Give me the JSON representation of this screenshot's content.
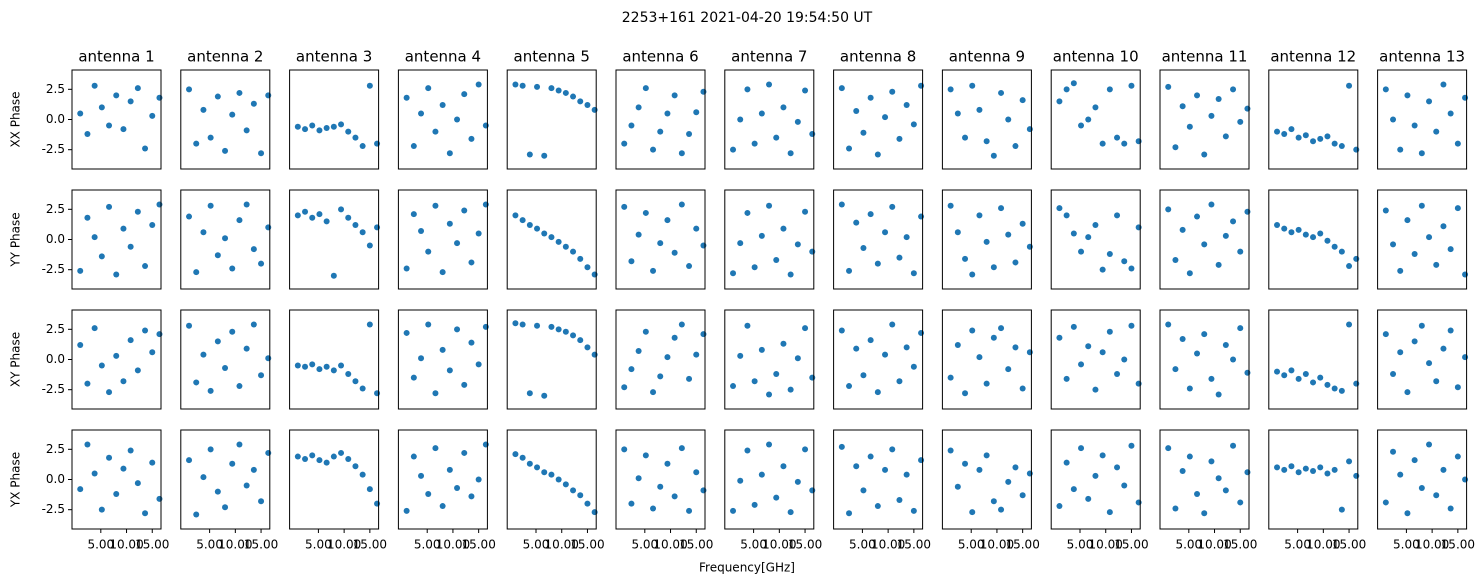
{
  "chart_data": {
    "type": "scatter",
    "title": "2253+161 2021-04-20 19:54:50 UT",
    "xlabel": "Frequency[GHz]",
    "columns": [
      "antenna 1",
      "antenna 2",
      "antenna 3",
      "antenna 4",
      "antenna 5",
      "antenna 6",
      "antenna 7",
      "antenna 8",
      "antenna 9",
      "antenna 10",
      "antenna 11",
      "antenna 12",
      "antenna 13"
    ],
    "rows": [
      "XX Phase",
      "YY Phase",
      "XY Phase",
      "YX Phase"
    ],
    "color": "#1f77b4",
    "xlim": [
      -0.6,
      16.7
    ],
    "xticks": [
      {
        "value": 5,
        "label": "5.00"
      },
      {
        "value": 10,
        "label": "10.00"
      },
      {
        "value": 15,
        "label": "15.00"
      }
    ],
    "ylim": [
      -4.1,
      4.1
    ],
    "yticks": [
      2.5,
      {
        "value": 0,
        "label": "0.0"
      },
      -2.5
    ],
    "x": [
      1.0,
      2.4,
      3.8,
      5.2,
      6.6,
      8.0,
      9.4,
      10.8,
      12.2,
      13.6,
      15.0,
      16.4
    ],
    "panels": [
      [
        [
          0.5,
          -1.2,
          2.8,
          1.0,
          -0.5,
          2.0,
          -0.8,
          1.5,
          2.6,
          -2.4,
          0.3,
          1.8
        ],
        [
          2.5,
          -2.0,
          0.8,
          -1.5,
          1.9,
          -2.6,
          0.4,
          2.2,
          -0.9,
          1.3,
          -2.8,
          2.0
        ],
        [
          -0.6,
          -0.8,
          -0.5,
          -0.9,
          -0.7,
          -0.6,
          -0.4,
          -1.0,
          -1.5,
          -2.2,
          2.8,
          -2.0
        ],
        [
          1.8,
          -2.2,
          0.5,
          2.6,
          -1.0,
          1.2,
          -2.8,
          0.0,
          2.1,
          -1.6,
          2.9,
          -0.5
        ],
        [
          2.9,
          2.8,
          -2.9,
          2.7,
          -3.0,
          2.6,
          2.4,
          2.2,
          1.9,
          1.5,
          1.2,
          0.8
        ],
        [
          -2.0,
          -0.5,
          1.0,
          2.6,
          -2.5,
          -1.0,
          0.5,
          2.0,
          -2.8,
          -1.2,
          0.6,
          2.3
        ],
        [
          -2.5,
          0.0,
          2.5,
          -2.0,
          0.5,
          2.9,
          -1.5,
          1.0,
          -2.8,
          -0.2,
          2.4,
          -1.2
        ],
        [
          2.6,
          -2.4,
          0.7,
          -1.1,
          1.8,
          -2.9,
          0.2,
          2.3,
          -1.6,
          1.2,
          -0.4,
          2.8
        ],
        [
          2.5,
          0.5,
          -1.5,
          2.8,
          0.8,
          -1.8,
          -3.0,
          2.2,
          0.0,
          -2.2,
          1.6,
          -0.8
        ],
        [
          1.5,
          2.5,
          3.0,
          -0.5,
          0.0,
          1.0,
          -2.0,
          2.5,
          -1.5,
          -2.0,
          2.8,
          -1.8
        ],
        [
          2.7,
          -2.3,
          1.1,
          -0.6,
          2.0,
          -2.9,
          0.3,
          1.7,
          -1.4,
          2.5,
          -0.2,
          0.9
        ],
        [
          -1.0,
          -1.2,
          -0.8,
          -1.5,
          -1.3,
          -1.8,
          -1.6,
          -1.4,
          -2.0,
          -2.2,
          2.8,
          -2.5
        ],
        [
          2.5,
          0.0,
          -2.5,
          2.0,
          -0.5,
          -2.8,
          1.5,
          -1.0,
          2.9,
          0.5,
          -2.0,
          1.8
        ]
      ],
      [
        [
          -2.6,
          1.8,
          0.2,
          -1.4,
          2.7,
          -2.9,
          0.9,
          -0.6,
          2.3,
          -2.2,
          1.2,
          2.9
        ],
        [
          1.9,
          -2.7,
          0.6,
          2.8,
          -1.3,
          0.1,
          -2.4,
          1.6,
          2.9,
          -0.8,
          -2.0,
          1.0
        ],
        [
          2.0,
          2.3,
          1.8,
          2.1,
          1.5,
          -3.0,
          2.5,
          1.8,
          1.2,
          0.6,
          -0.5,
          1.0
        ],
        [
          -2.4,
          2.1,
          0.7,
          -1.0,
          2.8,
          -2.7,
          1.3,
          -0.3,
          2.4,
          -1.9,
          0.5,
          2.9
        ],
        [
          2.0,
          1.6,
          1.2,
          0.9,
          0.5,
          0.2,
          -0.2,
          -0.6,
          -1.0,
          -1.6,
          -2.3,
          -2.9
        ],
        [
          2.7,
          -1.8,
          0.4,
          2.2,
          -2.6,
          -0.3,
          1.6,
          -1.1,
          2.9,
          -2.2,
          0.9,
          -0.5
        ],
        [
          -2.8,
          -0.3,
          2.2,
          -2.3,
          0.3,
          2.8,
          -1.7,
          0.9,
          -2.9,
          -0.4,
          2.3,
          -1.0
        ],
        [
          2.9,
          -2.6,
          1.4,
          -0.7,
          2.1,
          -2.0,
          0.6,
          2.7,
          -1.5,
          0.2,
          -2.8,
          1.9
        ],
        [
          2.8,
          0.6,
          -1.6,
          -2.9,
          2.0,
          -0.2,
          -2.3,
          2.6,
          0.4,
          -1.9,
          1.3,
          -0.6
        ],
        [
          2.6,
          2.0,
          0.5,
          -1.0,
          0.2,
          1.2,
          -2.5,
          -1.2,
          2.0,
          -1.8,
          -2.4,
          1.0
        ],
        [
          2.5,
          -1.7,
          0.8,
          -2.8,
          1.9,
          -0.4,
          2.9,
          -2.1,
          0.3,
          1.5,
          -1.0,
          2.3
        ],
        [
          1.2,
          0.9,
          0.6,
          0.8,
          0.4,
          0.2,
          0.5,
          -0.1,
          -0.6,
          -1.0,
          -2.2,
          -1.6
        ],
        [
          2.4,
          -0.4,
          -2.6,
          1.6,
          -1.2,
          2.8,
          0.2,
          -2.1,
          1.1,
          -0.8,
          2.6,
          -2.9
        ]
      ],
      [
        [
          1.2,
          -2.0,
          2.6,
          -0.5,
          -2.7,
          0.3,
          -1.8,
          1.6,
          -0.9,
          2.4,
          0.6,
          2.1
        ],
        [
          2.8,
          -1.9,
          0.4,
          -2.6,
          1.5,
          -0.7,
          2.3,
          -2.2,
          0.9,
          2.9,
          -1.3,
          0.1
        ],
        [
          -0.5,
          -0.6,
          -0.4,
          -0.8,
          -0.6,
          -0.9,
          -0.5,
          -1.2,
          -1.8,
          -2.4,
          2.9,
          -2.8
        ],
        [
          2.2,
          -1.5,
          0.1,
          2.9,
          -2.8,
          0.8,
          -0.9,
          2.5,
          -2.1,
          1.4,
          -0.4,
          2.7
        ],
        [
          3.0,
          2.9,
          -2.8,
          2.8,
          -3.0,
          2.7,
          2.5,
          2.3,
          2.0,
          1.6,
          1.0,
          0.4
        ],
        [
          -2.3,
          -0.8,
          0.7,
          2.3,
          -2.7,
          -1.4,
          0.2,
          1.8,
          2.9,
          -1.6,
          0.4,
          2.1
        ],
        [
          -2.2,
          0.3,
          2.8,
          -1.8,
          0.8,
          -2.9,
          -1.2,
          1.3,
          -2.5,
          0.1,
          2.6,
          -1.5
        ],
        [
          2.4,
          -2.2,
          0.9,
          -1.3,
          1.6,
          -2.7,
          0.4,
          2.9,
          -1.8,
          1.0,
          -0.6,
          2.2
        ],
        [
          -1.5,
          1.2,
          -2.8,
          2.4,
          0.2,
          -2.0,
          1.8,
          2.6,
          -0.8,
          1.0,
          -2.4,
          0.6
        ],
        [
          1.8,
          -1.6,
          2.7,
          -0.4,
          1.1,
          -2.5,
          0.6,
          2.3,
          -1.2,
          0.0,
          2.8,
          -2.0
        ],
        [
          2.9,
          -0.8,
          1.7,
          -2.4,
          0.5,
          2.1,
          -1.6,
          -2.9,
          1.2,
          0.0,
          2.6,
          -1.1
        ],
        [
          -1.0,
          -1.3,
          -0.9,
          -1.6,
          -1.2,
          -1.9,
          -1.5,
          -2.1,
          -2.4,
          -2.6,
          2.9,
          -2.0
        ],
        [
          2.1,
          -1.2,
          0.6,
          -2.7,
          1.5,
          2.8,
          -0.3,
          -1.8,
          0.9,
          2.4,
          -2.3,
          0.2
        ]
      ],
      [
        [
          -0.8,
          2.9,
          0.5,
          -2.5,
          1.8,
          -1.2,
          0.9,
          2.4,
          -0.3,
          -2.8,
          1.4,
          -1.6
        ],
        [
          1.6,
          -2.9,
          0.2,
          2.5,
          -1.0,
          -2.3,
          1.3,
          2.9,
          -0.5,
          0.8,
          -1.8,
          2.2
        ],
        [
          1.9,
          1.7,
          2.0,
          1.6,
          1.4,
          1.9,
          2.2,
          1.7,
          1.1,
          0.4,
          -0.8,
          -2.0
        ],
        [
          -2.6,
          1.9,
          0.3,
          -1.2,
          2.6,
          -2.2,
          0.8,
          -0.7,
          2.2,
          -1.4,
          0.0,
          2.9
        ],
        [
          2.1,
          1.8,
          1.3,
          1.0,
          0.6,
          0.4,
          0.0,
          -0.4,
          -0.9,
          -1.3,
          -2.0,
          -2.7
        ],
        [
          2.5,
          -2.0,
          0.1,
          2.0,
          -2.4,
          -0.6,
          1.3,
          -1.4,
          2.6,
          -2.6,
          0.6,
          -0.9
        ],
        [
          -2.6,
          -0.1,
          2.4,
          -2.1,
          0.4,
          2.9,
          -1.5,
          1.1,
          -2.7,
          -0.2,
          2.5,
          -0.9
        ],
        [
          2.7,
          -2.8,
          1.1,
          -0.9,
          1.9,
          -2.2,
          0.8,
          2.5,
          -1.7,
          0.4,
          -2.6,
          1.6
        ],
        [
          2.4,
          -0.6,
          1.3,
          -2.7,
          0.8,
          2.0,
          -1.8,
          -2.5,
          -0.2,
          1.0,
          -1.3,
          0.5
        ],
        [
          -2.2,
          1.4,
          -0.8,
          2.6,
          -1.6,
          0.3,
          2.0,
          -2.7,
          1.0,
          -0.5,
          2.8,
          -1.9
        ],
        [
          2.6,
          -2.4,
          0.7,
          1.9,
          -1.2,
          -2.8,
          1.5,
          0.1,
          -0.9,
          2.8,
          -1.9,
          0.6
        ],
        [
          1.0,
          0.8,
          1.1,
          0.6,
          0.9,
          0.7,
          1.0,
          0.5,
          0.8,
          -2.5,
          1.5,
          0.3
        ],
        [
          -1.9,
          2.3,
          0.4,
          -2.8,
          1.6,
          -0.7,
          2.9,
          -1.3,
          0.8,
          -2.4,
          1.9,
          0.0
        ]
      ]
    ]
  }
}
